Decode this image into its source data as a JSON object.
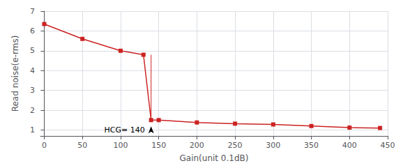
{
  "chart_data": {
    "type": "line",
    "x": [
      0,
      50,
      100,
      130,
      140,
      150,
      200,
      250,
      300,
      350,
      400,
      440
    ],
    "values": [
      6.35,
      5.6,
      5.0,
      4.8,
      1.5,
      1.5,
      1.38,
      1.32,
      1.28,
      1.2,
      1.12,
      1.1
    ],
    "color": "#cc2222",
    "marker": "square",
    "drop_line": {
      "x": 140,
      "from": 4.8,
      "to": 1.5
    },
    "annotations": [
      {
        "text": "HCG= 140",
        "x": 140,
        "y": 1.5
      }
    ],
    "xlabel": "Gain(unit 0.1dB)",
    "ylabel": "Read noise(e-rms)",
    "xlim": [
      -5,
      450
    ],
    "ylim": [
      0.7,
      7.0
    ],
    "xticks": [
      0,
      50,
      100,
      150,
      200,
      250,
      300,
      350,
      400,
      450
    ],
    "yticks": [
      1,
      2,
      3,
      4,
      5,
      6,
      7
    ],
    "grid": true
  }
}
